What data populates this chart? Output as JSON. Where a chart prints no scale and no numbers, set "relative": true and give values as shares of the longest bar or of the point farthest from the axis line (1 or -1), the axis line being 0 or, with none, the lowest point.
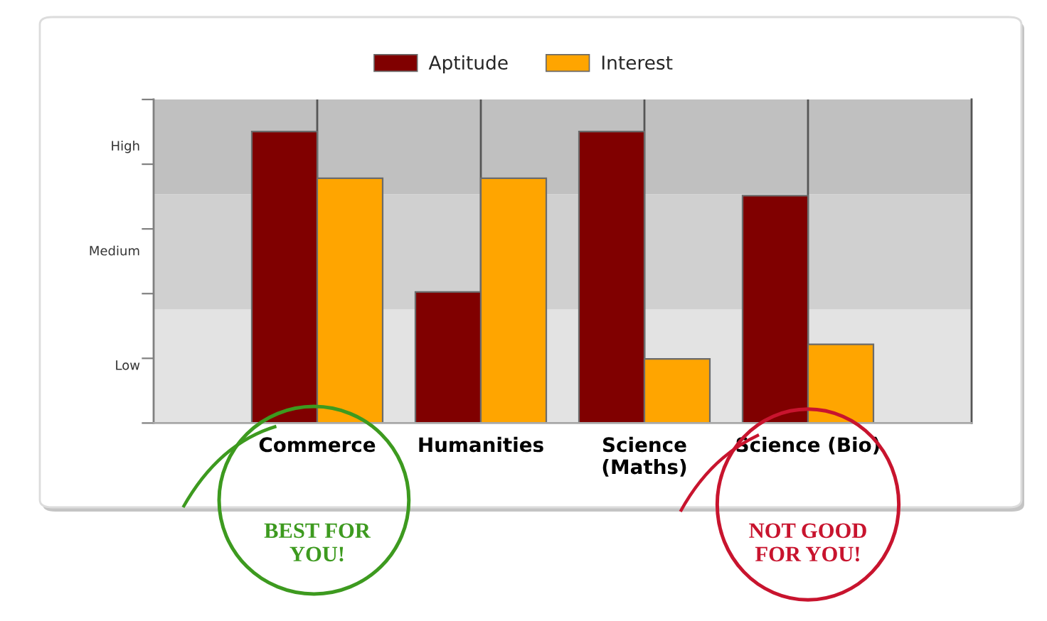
{
  "chart_data": {
    "type": "bar",
    "relative": true,
    "categories": [
      "Commerce",
      "Humanities",
      "Science\n(Maths)",
      "Science (Bio)"
    ],
    "series": [
      {
        "name": "Aptitude",
        "color": "#800000",
        "values": [
          1,
          0.45,
          1,
          0.78
        ]
      },
      {
        "name": "Interest",
        "color": "#ffa500",
        "values": [
          0.84,
          0.84,
          0.22,
          0.27
        ]
      }
    ],
    "bands": [
      {
        "axis": "y",
        "from": 0,
        "to": 0.39,
        "label": "Low",
        "color": "#e3e3e3"
      },
      {
        "axis": "y",
        "from": 0.39,
        "to": 0.785,
        "label": "Medium",
        "color": "#d0d0d0"
      },
      {
        "axis": "y",
        "from": 0.785,
        "to": 1.11,
        "label": "High",
        "color": "#c0c0c0"
      }
    ],
    "grid": "x",
    "legend": "top",
    "annotations": [
      "BEST FOR\nYOU!",
      "NOT GOOD\nFOR YOU!"
    ]
  }
}
